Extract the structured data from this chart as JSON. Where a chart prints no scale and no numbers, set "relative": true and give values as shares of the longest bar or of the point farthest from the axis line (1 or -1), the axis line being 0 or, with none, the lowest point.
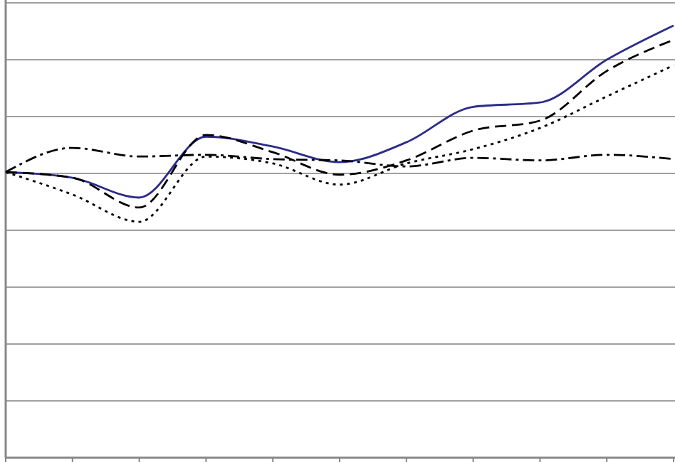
{
  "chart_data": {
    "type": "line",
    "relative": true,
    "grid": "y",
    "categories": [
      null,
      null,
      null,
      null,
      null,
      null,
      null,
      null,
      null,
      null,
      null
    ],
    "series": [
      {
        "color": "#2b2b8a",
        "line_style": "solid",
        "values": [
          0.661,
          0.648,
          0.602,
          0.743,
          0.72,
          0.684,
          0.73,
          0.812,
          0.822,
          0.921,
          1
        ]
      },
      {
        "color": "#000000",
        "line_style": "dashed",
        "values": [
          0.661,
          0.648,
          0.579,
          0.747,
          0.707,
          0.655,
          0.688,
          0.757,
          0.78,
          0.895,
          0.967
        ]
      },
      {
        "color": "#000000",
        "line_style": "dotted",
        "values": [
          0.661,
          0.609,
          0.546,
          0.697,
          0.681,
          0.632,
          0.681,
          0.714,
          0.763,
          0.836,
          0.908
        ]
      },
      {
        "color": "#000000",
        "line_style": "dashdot",
        "values": [
          0.661,
          0.717,
          0.697,
          0.701,
          0.691,
          0.688,
          0.674,
          0.694,
          0.688,
          0.701,
          0.691
        ]
      }
    ]
  }
}
